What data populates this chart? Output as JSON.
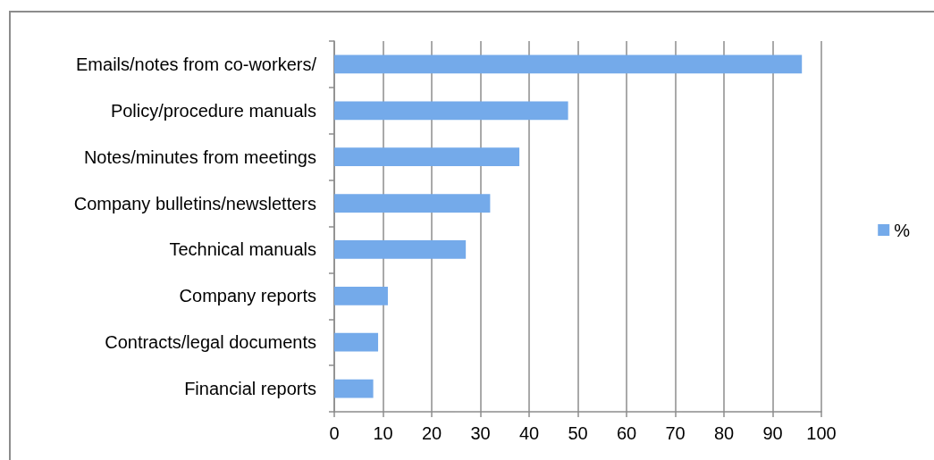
{
  "chart_data": {
    "type": "bar",
    "orientation": "horizontal",
    "categories": [
      "Emails/notes from co-workers/",
      "Policy/procedure manuals",
      "Notes/minutes from meetings",
      "Company bulletins/newsletters",
      "Technical manuals",
      "Company reports",
      "Contracts/legal documents",
      "Financial reports"
    ],
    "series": [
      {
        "name": "%",
        "color": "#74aaea",
        "values": [
          96,
          48,
          38,
          32,
          27,
          11,
          9,
          8
        ]
      }
    ],
    "xlim": [
      0,
      100
    ],
    "xticks": [
      0,
      10,
      20,
      30,
      40,
      50,
      60,
      70,
      80,
      90,
      100
    ],
    "grid": "x",
    "legend": "right"
  }
}
